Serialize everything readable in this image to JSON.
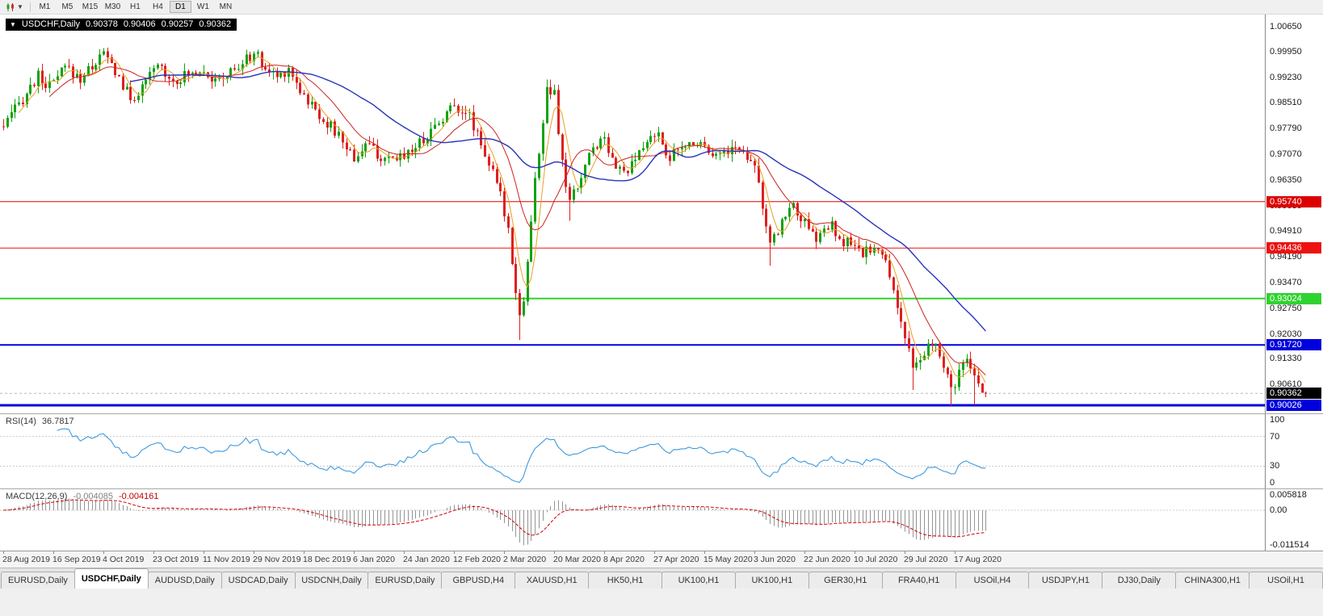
{
  "toolbar": {
    "chart_menu_icon": "candlestick-chart",
    "dropdown_icon": "chevron-down",
    "timeframes": [
      {
        "label": "M1",
        "active": false
      },
      {
        "label": "M5",
        "active": false
      },
      {
        "label": "M15",
        "active": false
      },
      {
        "label": "M30",
        "active": false
      },
      {
        "label": "H1",
        "active": false
      },
      {
        "label": "H4",
        "active": false
      },
      {
        "label": "D1",
        "active": true
      },
      {
        "label": "W1",
        "active": false
      },
      {
        "label": "MN",
        "active": false
      }
    ]
  },
  "price_panel": {
    "symbol_label": "USDCHF,Daily",
    "ohlc": {
      "open": "0.90378",
      "high": "0.90406",
      "low": "0.90257",
      "close": "0.90362"
    },
    "axis_labels": [
      "1.00650",
      "0.99950",
      "0.99230",
      "0.98510",
      "0.97790",
      "0.97070",
      "0.96350",
      "0.95630",
      "0.94910",
      "0.94190",
      "0.93470",
      "0.92750",
      "0.92030",
      "0.91330",
      "0.90610",
      "0.89890"
    ],
    "axis_highlights": [
      {
        "value": "0.95740",
        "bg": "#dd0000"
      },
      {
        "value": "0.94436",
        "bg": "#ee1111"
      },
      {
        "value": "0.93024",
        "bg": "#2fd32f"
      },
      {
        "value": "0.91720",
        "bg": "#0000dd"
      },
      {
        "value": "0.90362",
        "bg": "#000000"
      },
      {
        "value": "0.90026",
        "bg": "#0000dd"
      }
    ]
  },
  "rsi_panel": {
    "label": "RSI(14)",
    "value": "36.7817",
    "axis_labels": [
      "100",
      "70",
      "30",
      "0"
    ]
  },
  "macd_panel": {
    "label": "MACD(12,26,9)",
    "value_main": "-0.004085",
    "value_signal": "-0.004161",
    "axis_labels": [
      "0.005818",
      "0.00",
      "-0.011514"
    ]
  },
  "date_axis": [
    "28 Aug 2019",
    "16 Sep 2019",
    "4 Oct 2019",
    "23 Oct 2019",
    "11 Nov 2019",
    "29 Nov 2019",
    "18 Dec 2019",
    "6 Jan 2020",
    "24 Jan 2020",
    "12 Feb 2020",
    "2 Mar 2020",
    "20 Mar 2020",
    "8 Apr 2020",
    "27 Apr 2020",
    "15 May 2020",
    "3 Jun 2020",
    "22 Jun 2020",
    "10 Jul 2020",
    "29 Jul 2020",
    "17 Aug 2020"
  ],
  "tabs": [
    {
      "label": "EURUSD,Daily",
      "active": false
    },
    {
      "label": "USDCHF,Daily",
      "active": true
    },
    {
      "label": "AUDUSD,Daily",
      "active": false
    },
    {
      "label": "USDCAD,Daily",
      "active": false
    },
    {
      "label": "USDCNH,Daily",
      "active": false
    },
    {
      "label": "EURUSD,Daily",
      "active": false
    },
    {
      "label": "GBPUSD,H4",
      "active": false
    },
    {
      "label": "XAUUSD,H1",
      "active": false
    },
    {
      "label": "HK50,H1",
      "active": false
    },
    {
      "label": "UK100,H1",
      "active": false
    },
    {
      "label": "UK100,H1",
      "active": false
    },
    {
      "label": "GER30,H1",
      "active": false
    },
    {
      "label": "FRA40,H1",
      "active": false
    },
    {
      "label": "USOil,H4",
      "active": false
    },
    {
      "label": "USDJPY,H1",
      "active": false
    },
    {
      "label": "DJ30,Daily",
      "active": false
    },
    {
      "label": "CHINA300,H1",
      "active": false
    },
    {
      "label": "USOil,H1",
      "active": false
    }
  ],
  "chart_data": {
    "type": "candlestick",
    "symbol": "USDCHF",
    "timeframe": "Daily",
    "x_range_dates": [
      "28 Aug 2019",
      "4 Sep 2020"
    ],
    "num_candles": 256,
    "candles_per_gridline": 13,
    "ylim": [
      0.898,
      1.0099
    ],
    "ohlc_current": {
      "open": 0.90378,
      "high": 0.90406,
      "low": 0.90257,
      "close": 0.90362
    },
    "current_price": 0.90362,
    "up_color": "#0fa30f",
    "down_color": "#dd2020",
    "horizontal_levels": [
      {
        "price": 0.9574,
        "color": "#dd0000",
        "width": 1
      },
      {
        "price": 0.94436,
        "color": "#ee1111",
        "width": 1
      },
      {
        "price": 0.93024,
        "color": "#2fd32f",
        "width": 2
      },
      {
        "price": 0.9172,
        "color": "#0000dd",
        "width": 2
      },
      {
        "price": 0.90026,
        "color": "#0000dd",
        "width": 3
      }
    ],
    "moving_averages": [
      {
        "type": "sma",
        "period": 5,
        "color": "#e8a020",
        "width": 1
      },
      {
        "type": "sma",
        "period": 13,
        "color": "#cc2222",
        "width": 1
      },
      {
        "type": "sma",
        "period": 34,
        "color": "#2733bb",
        "width": 1.4
      }
    ],
    "price_path_waypoints": [
      [
        0,
        0.9785
      ],
      [
        3,
        0.983
      ],
      [
        6,
        0.988
      ],
      [
        9,
        0.9925
      ],
      [
        12,
        0.9895
      ],
      [
        16,
        0.995
      ],
      [
        20,
        0.992
      ],
      [
        23,
        0.9955
      ],
      [
        26,
        0.999
      ],
      [
        29,
        0.994
      ],
      [
        33,
        0.986
      ],
      [
        36,
        0.989
      ],
      [
        40,
        0.996
      ],
      [
        44,
        0.9915
      ],
      [
        48,
        0.993
      ],
      [
        52,
        0.995
      ],
      [
        55,
        0.9905
      ],
      [
        58,
        0.993
      ],
      [
        62,
        0.996
      ],
      [
        65,
        0.9995
      ],
      [
        68,
        0.9945
      ],
      [
        71,
        0.9925
      ],
      [
        74,
        0.995
      ],
      [
        78,
        0.987
      ],
      [
        81,
        0.983
      ],
      [
        84,
        0.9795
      ],
      [
        88,
        0.9745
      ],
      [
        91,
        0.9695
      ],
      [
        94,
        0.9735
      ],
      [
        97,
        0.971
      ],
      [
        99,
        0.968
      ],
      [
        102,
        0.9695
      ],
      [
        104,
        0.971
      ],
      [
        107,
        0.973
      ],
      [
        110,
        0.976
      ],
      [
        113,
        0.98
      ],
      [
        117,
        0.9845
      ],
      [
        120,
        0.983
      ],
      [
        123,
        0.977
      ],
      [
        126,
        0.968
      ],
      [
        129,
        0.959
      ],
      [
        131,
        0.95
      ],
      [
        133,
        0.933
      ],
      [
        134,
        0.9255
      ],
      [
        135,
        0.93
      ],
      [
        136,
        0.9405
      ],
      [
        138,
        0.963
      ],
      [
        140,
        0.98
      ],
      [
        141,
        0.9885
      ],
      [
        143,
        0.987
      ],
      [
        144,
        0.976
      ],
      [
        146,
        0.962
      ],
      [
        147,
        0.9575
      ],
      [
        149,
        0.9615
      ],
      [
        151,
        0.9675
      ],
      [
        153,
        0.973
      ],
      [
        156,
        0.9755
      ],
      [
        158,
        0.97
      ],
      [
        160,
        0.966
      ],
      [
        162,
        0.9655
      ],
      [
        164,
        0.969
      ],
      [
        166,
        0.9725
      ],
      [
        169,
        0.977
      ],
      [
        171,
        0.9735
      ],
      [
        173,
        0.97
      ],
      [
        176,
        0.972
      ],
      [
        179,
        0.9745
      ],
      [
        182,
        0.9735
      ],
      [
        184,
        0.9715
      ],
      [
        186,
        0.9705
      ],
      [
        188,
        0.972
      ],
      [
        190,
        0.9725
      ],
      [
        193,
        0.9705
      ],
      [
        195,
        0.969
      ],
      [
        196,
        0.9625
      ],
      [
        197,
        0.956
      ],
      [
        199,
        0.9445
      ],
      [
        201,
        0.949
      ],
      [
        203,
        0.9545
      ],
      [
        205,
        0.956
      ],
      [
        207,
        0.953
      ],
      [
        209,
        0.949
      ],
      [
        211,
        0.947
      ],
      [
        213,
        0.9495
      ],
      [
        215,
        0.9505
      ],
      [
        217,
        0.9455
      ],
      [
        219,
        0.9465
      ],
      [
        221,
        0.944
      ],
      [
        223,
        0.9425
      ],
      [
        225,
        0.9445
      ],
      [
        227,
        0.9435
      ],
      [
        229,
        0.94
      ],
      [
        231,
        0.933
      ],
      [
        233,
        0.924
      ],
      [
        235,
        0.915
      ],
      [
        236,
        0.9095
      ],
      [
        238,
        0.9125
      ],
      [
        240,
        0.9165
      ],
      [
        242,
        0.9175
      ],
      [
        244,
        0.91
      ],
      [
        246,
        0.905
      ],
      [
        248,
        0.909
      ],
      [
        250,
        0.9125
      ],
      [
        252,
        0.908
      ],
      [
        254,
        0.9055
      ],
      [
        255,
        0.9036
      ]
    ],
    "wick_extremes": [
      {
        "i": 134,
        "low": 0.9186
      },
      {
        "i": 141,
        "high": 0.9903
      },
      {
        "i": 147,
        "low": 0.952
      },
      {
        "i": 199,
        "low": 0.9394
      },
      {
        "i": 236,
        "low": 0.9046
      },
      {
        "i": 246,
        "low": 0.9002
      },
      {
        "i": 252,
        "low": 0.9004
      }
    ],
    "indicators": {
      "rsi": {
        "period": 14,
        "current": 36.7817,
        "ylim": [
          0,
          100
        ],
        "guides": [
          70,
          30
        ],
        "color": "#3e9ade"
      },
      "macd": {
        "fast": 12,
        "slow": 26,
        "signal_period": 9,
        "current_macd": -0.004085,
        "current_signal": -0.004161,
        "ylim": [
          -0.0135,
          0.007
        ],
        "histogram_color": "#949494",
        "signal_color": "#d40000"
      }
    }
  }
}
